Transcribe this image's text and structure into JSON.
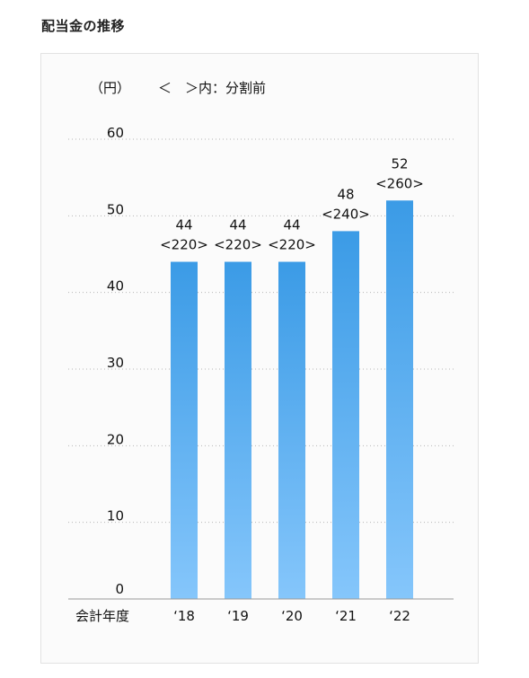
{
  "page": {
    "title": "配当金の推移"
  },
  "chart_data": {
    "type": "bar",
    "unit_label": "（円）",
    "legend_note": "＜　＞内：分割前",
    "xlabel": "会計年度",
    "categories": [
      "‘18",
      "‘19",
      "‘20",
      "‘21",
      "‘22"
    ],
    "values": [
      44,
      44,
      44,
      48,
      52
    ],
    "pre_split_values": [
      220,
      220,
      220,
      240,
      260
    ],
    "pre_split_labels": [
      "<220>",
      "<220>",
      "<220>",
      "<240>",
      "<260>"
    ],
    "ylim": [
      0,
      60
    ],
    "yticks": [
      0,
      10,
      20,
      30,
      40,
      50,
      60
    ],
    "grid": true,
    "bar_color_top": "#3b9be6",
    "bar_color_bottom": "#85c6fb"
  }
}
